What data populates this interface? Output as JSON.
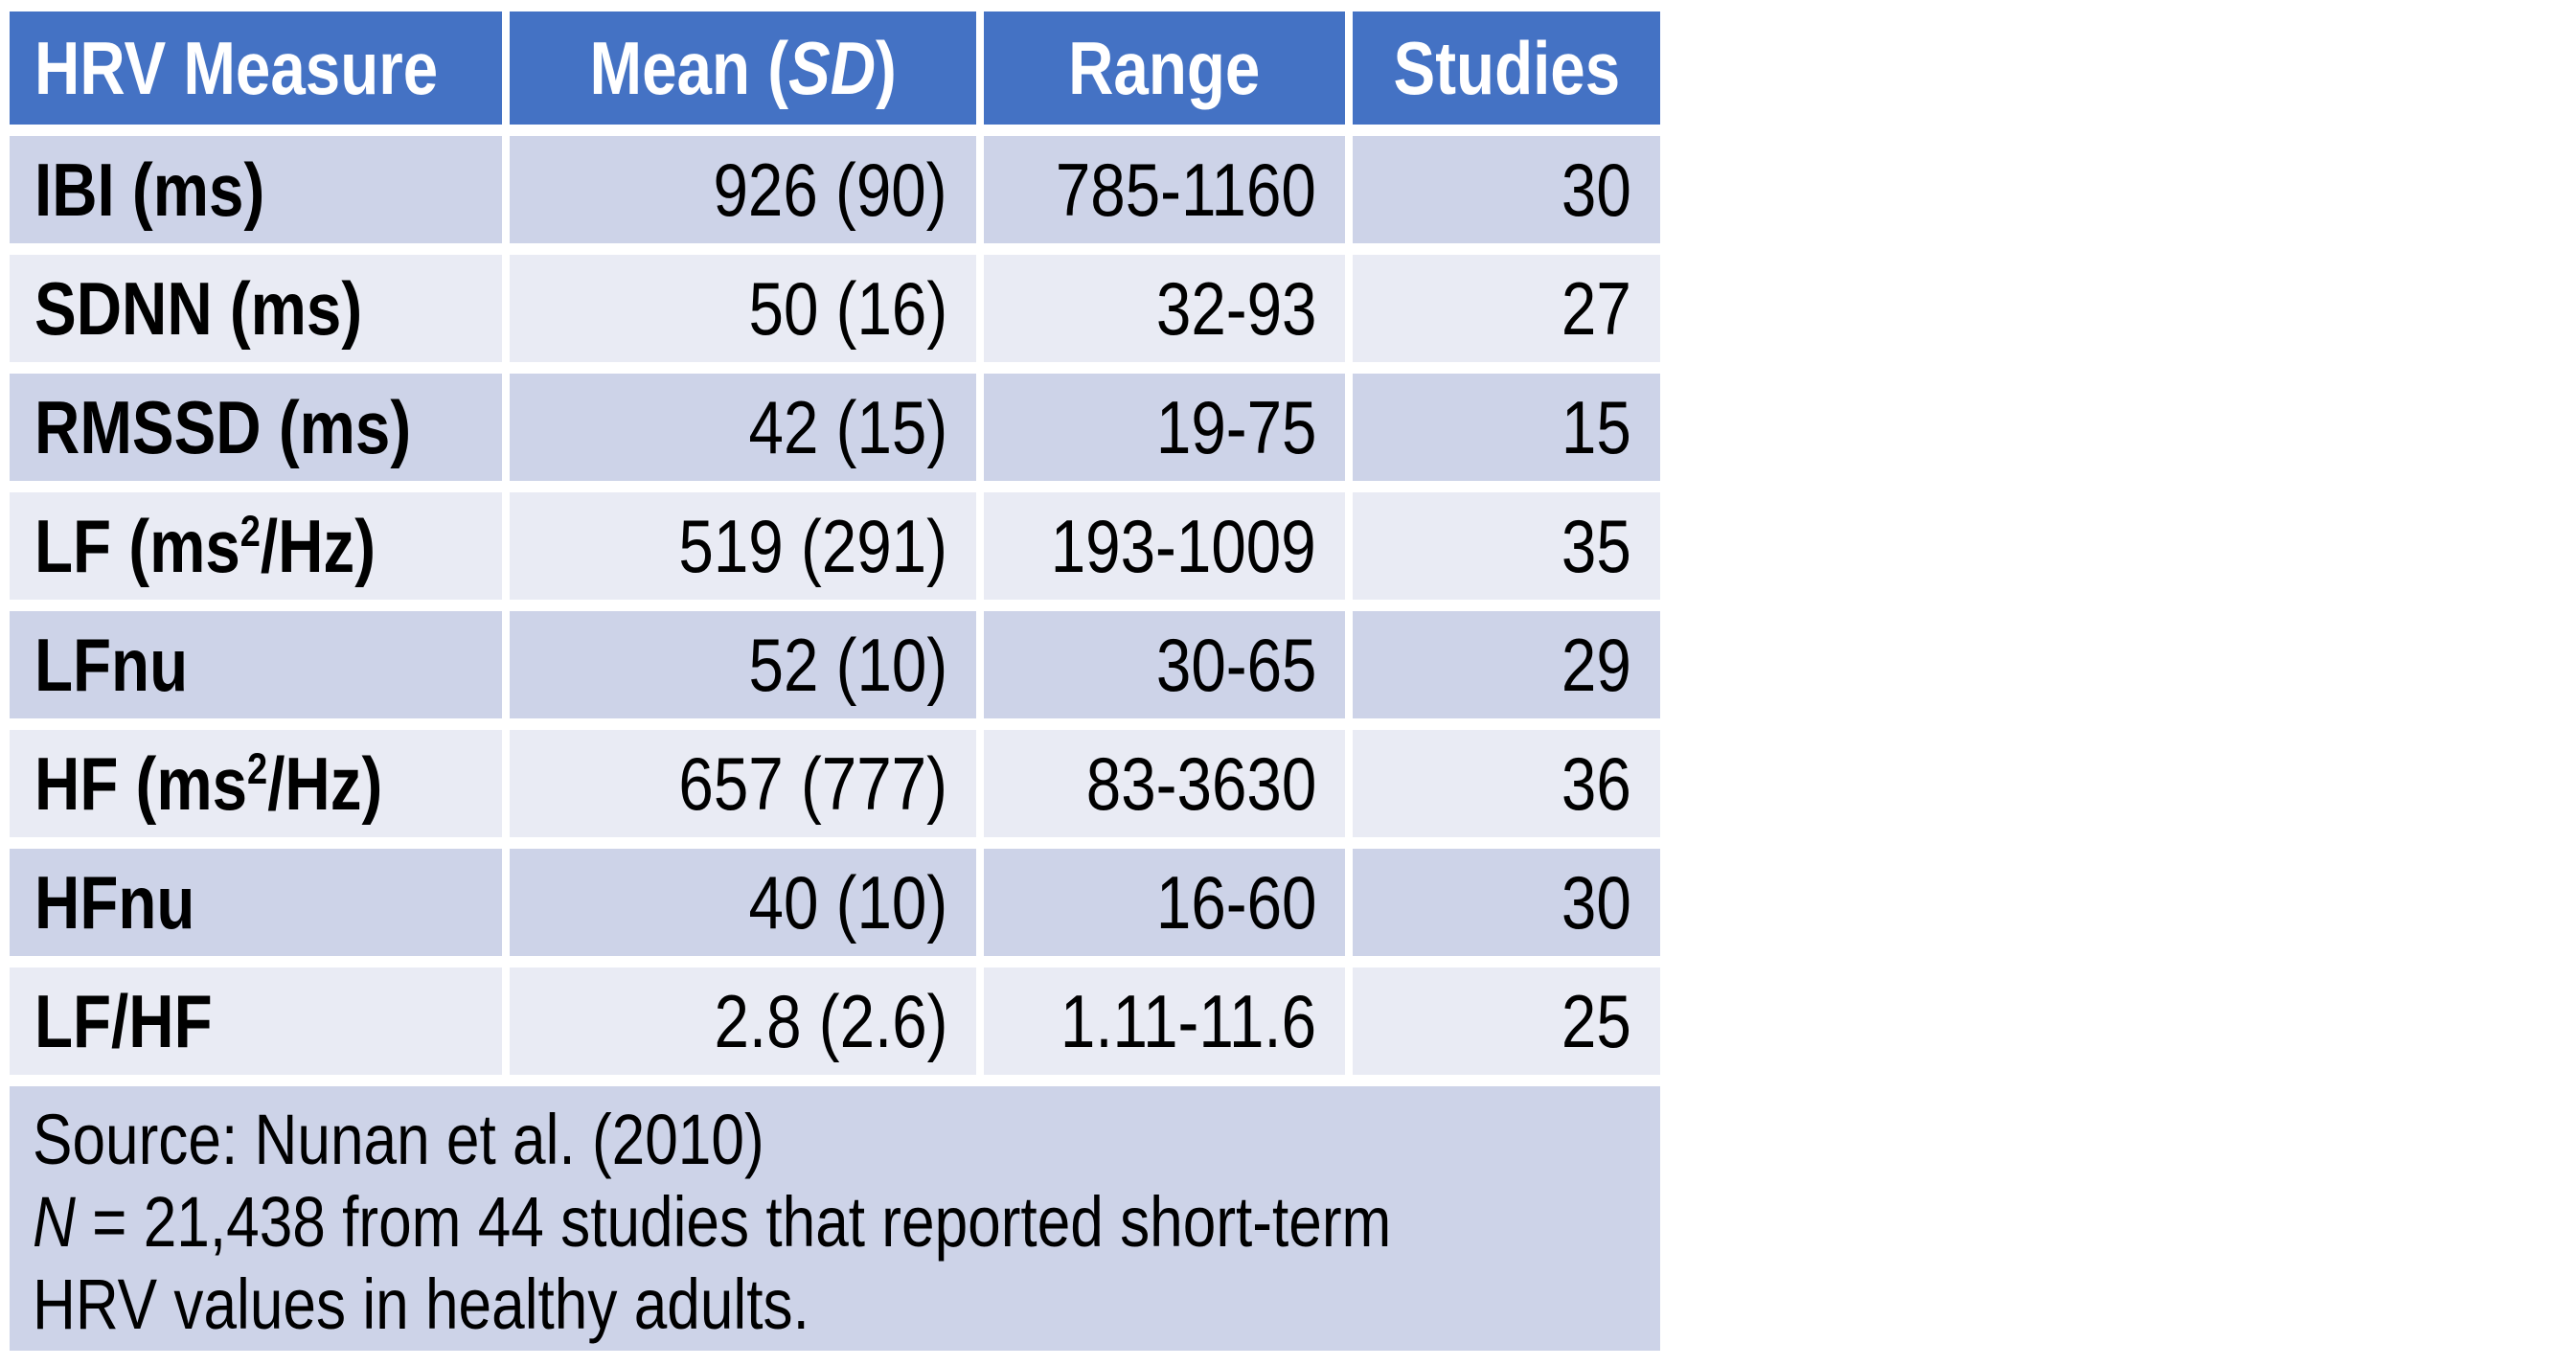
{
  "colors": {
    "header_bg": "#4472C4",
    "header_text": "#FFFFFF",
    "band_dark": "#CDD3E8",
    "band_light": "#E9EBF4",
    "body_text": "#000000",
    "page_bg": "#FFFFFF"
  },
  "table": {
    "header": {
      "col1": "HRV Measure",
      "col2_pre": "Mean (",
      "col2_italic": "SD",
      "col2_post": ")",
      "col3": "Range",
      "col4": "Studies"
    },
    "rows": [
      {
        "m_pre": "IBI (ms)",
        "m_sup": "",
        "m_post": "",
        "mean": "926 (90)",
        "range": "785-1160",
        "studies": "30"
      },
      {
        "m_pre": "SDNN (ms)",
        "m_sup": "",
        "m_post": "",
        "mean": "50 (16)",
        "range": "32-93",
        "studies": "27"
      },
      {
        "m_pre": "RMSSD (ms)",
        "m_sup": "",
        "m_post": "",
        "mean": "42 (15)",
        "range": "19-75",
        "studies": "15"
      },
      {
        "m_pre": "LF (ms",
        "m_sup": "2",
        "m_post": "/Hz)",
        "mean": "519 (291)",
        "range": "193-1009",
        "studies": "35"
      },
      {
        "m_pre": "LFnu",
        "m_sup": "",
        "m_post": "",
        "mean": "52 (10)",
        "range": "30-65",
        "studies": "29"
      },
      {
        "m_pre": "HF (ms",
        "m_sup": "2",
        "m_post": "/Hz)",
        "mean": "657 (777)",
        "range": "83-3630",
        "studies": "36"
      },
      {
        "m_pre": "HFnu",
        "m_sup": "",
        "m_post": "",
        "mean": "40 (10)",
        "range": "16-60",
        "studies": "30"
      },
      {
        "m_pre": "LF/HF",
        "m_sup": "",
        "m_post": "",
        "mean": "2.8 (2.6)",
        "range": "1.11-11.6",
        "studies": "25"
      }
    ],
    "footer": {
      "line1": "Source: Nunan et al. (2010)",
      "line2_italic": "N",
      "line2_rest": " = 21,438 from 44 studies that reported short-term",
      "line3": "HRV values in healthy adults."
    }
  },
  "chart_data": {
    "type": "table",
    "columns": [
      "HRV Measure",
      "Mean (SD)",
      "Range",
      "Studies"
    ],
    "rows": [
      [
        "IBI (ms)",
        "926 (90)",
        "785-1160",
        30
      ],
      [
        "SDNN (ms)",
        "50 (16)",
        "32-93",
        27
      ],
      [
        "RMSSD (ms)",
        "42 (15)",
        "19-75",
        15
      ],
      [
        "LF (ms2/Hz)",
        "519 (291)",
        "193-1009",
        35
      ],
      [
        "LFnu",
        "52 (10)",
        "30-65",
        29
      ],
      [
        "HF (ms2/Hz)",
        "657 (777)",
        "83-3630",
        36
      ],
      [
        "HFnu",
        "40 (10)",
        "16-60",
        30
      ],
      [
        "LF/HF",
        "2.8 (2.6)",
        "1.11-11.6",
        25
      ]
    ],
    "notes": [
      "Source: Nunan et al. (2010)",
      "N = 21,438 from 44 studies that reported short-term HRV values in healthy adults."
    ]
  }
}
